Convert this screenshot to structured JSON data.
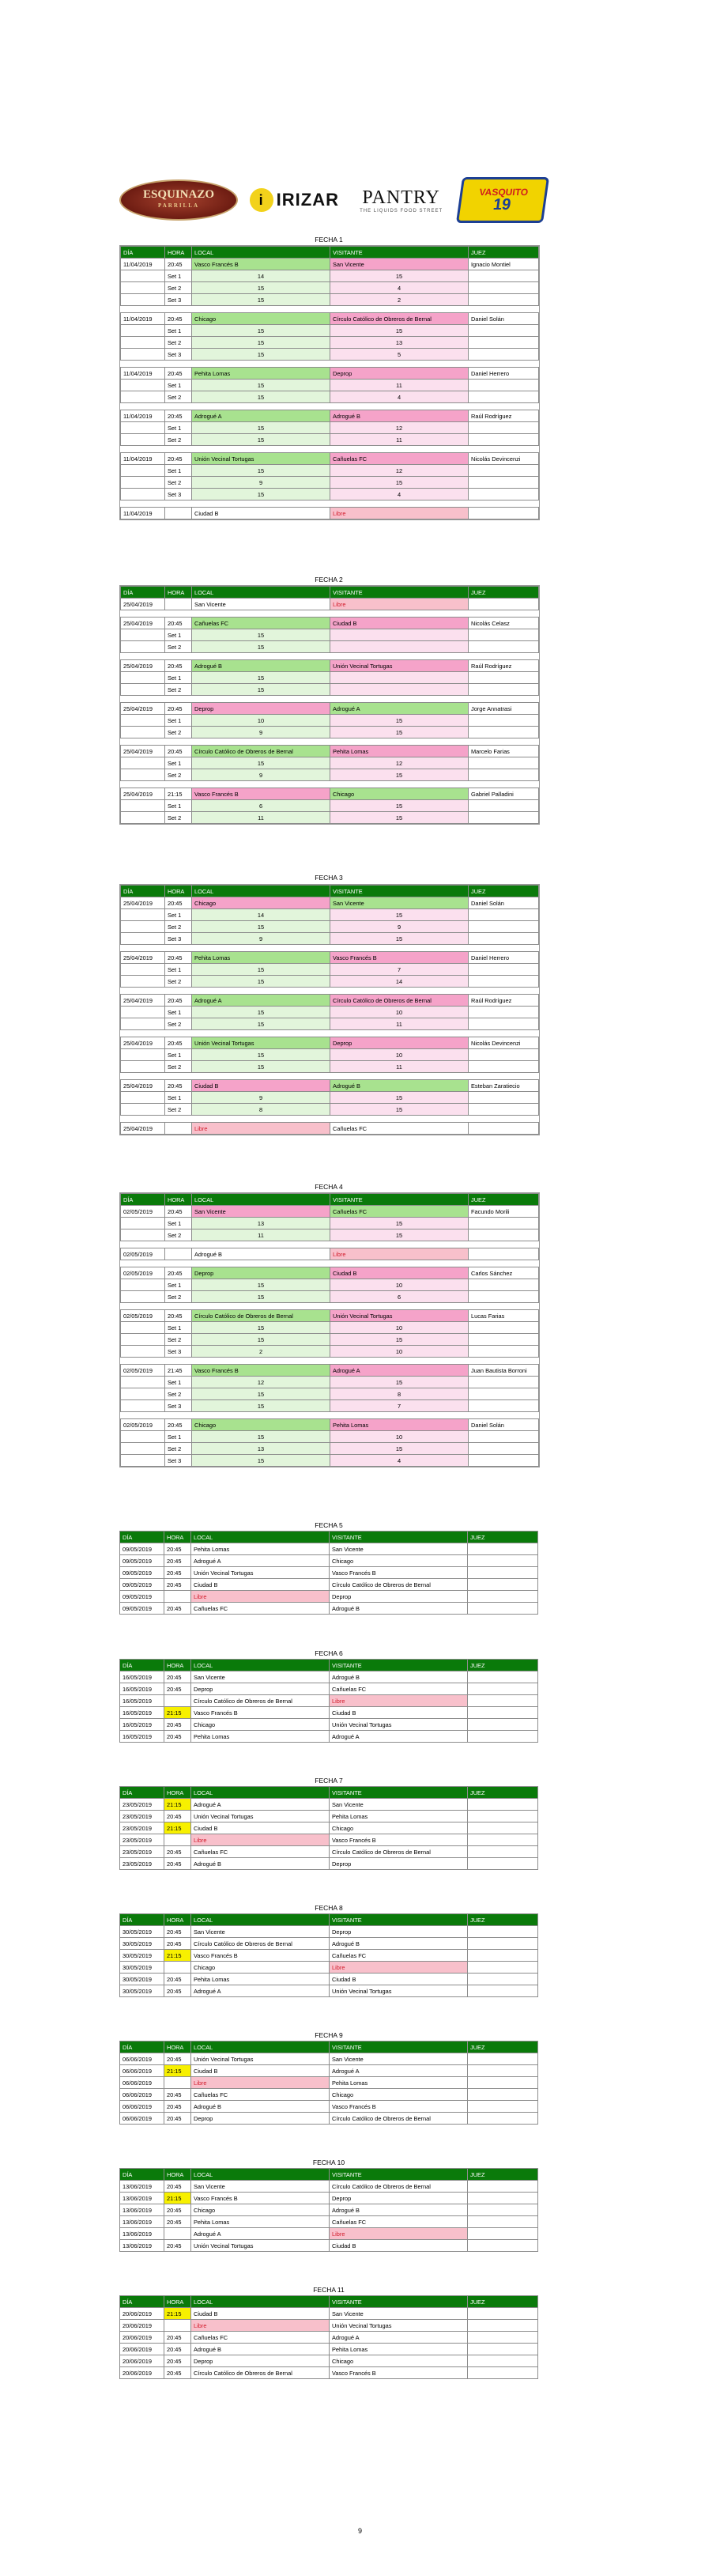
{
  "sponsors": {
    "esquinazo": {
      "main": "ESQUINAZO",
      "sub": "PARRILLA"
    },
    "irizar": {
      "main": "IRIZAR",
      "mark": "i"
    },
    "pantry": {
      "main": "PANTRY",
      "sub": "THE LIQUIDS FOOD STREET"
    },
    "vasquito": {
      "main": "VASQUITO",
      "num": "19"
    }
  },
  "header": {
    "dia": "DÍA",
    "hora": "HORA",
    "local": "LOCAL",
    "visitante": "VISITANTE",
    "juez": "JUEZ"
  },
  "fechas": [
    {
      "title": "FECHA 1",
      "matches": [
        {
          "dia": "11/04/2019",
          "hora": "20:45",
          "local": "Vasco Francés B",
          "visitante": "San Vicente",
          "juez": "Ignacio Montiel",
          "sets": [
            [
              "Set 1",
              "14",
              "15"
            ],
            [
              "Set 2",
              "15",
              "4"
            ],
            [
              "Set 3",
              "15",
              "2"
            ]
          ]
        },
        {
          "dia": "11/04/2019",
          "hora": "20:45",
          "local": "Chicago",
          "visitante": "Círculo Católico de Obreros de Bernal",
          "juez": "Daniel Solán",
          "sets": [
            [
              "Set 1",
              "15",
              "15"
            ],
            [
              "Set 2",
              "15",
              "13"
            ],
            [
              "Set 3",
              "15",
              "5"
            ]
          ]
        },
        {
          "dia": "11/04/2019",
          "hora": "20:45",
          "local": "Pehita Lomas",
          "visitante": "Deprop",
          "juez": "Daniel Herrero",
          "sets": [
            [
              "Set 1",
              "15",
              "11"
            ],
            [
              "Set 2",
              "15",
              "4"
            ]
          ]
        },
        {
          "dia": "11/04/2019",
          "hora": "20:45",
          "local": "Adrogué A",
          "visitante": "Adrogué B",
          "juez": "Raúl Rodríguez",
          "sets": [
            [
              "Set 1",
              "15",
              "12"
            ],
            [
              "Set 2",
              "15",
              "11"
            ]
          ]
        },
        {
          "dia": "11/04/2019",
          "hora": "20:45",
          "local": "Unión Vecinal Tortugas",
          "visitante": "Cañuelas FC",
          "juez": "Nicolás Devincenzi",
          "sets": [
            [
              "Set 1",
              "15",
              "12"
            ],
            [
              "Set 2",
              "9",
              "15"
            ],
            [
              "Set 3",
              "15",
              "4"
            ]
          ]
        },
        {
          "dia": "11/04/2019",
          "hora": "",
          "local": "Ciudad B",
          "visitante": "Libre",
          "juez": "",
          "libre": "v",
          "sets": []
        }
      ]
    },
    {
      "title": "FECHA 2",
      "matches": [
        {
          "dia": "25/04/2019",
          "hora": "",
          "local": "San Vicente",
          "visitante": "Libre",
          "juez": "",
          "libre": "v",
          "sets": []
        },
        {
          "dia": "25/04/2019",
          "hora": "20:45",
          "local": "Cañuelas FC",
          "visitante": "Ciudad B",
          "juez": "Nicolás Celasz",
          "sets": [
            [
              "Set 1",
              "15",
              ""
            ],
            [
              "Set 2",
              "15",
              ""
            ]
          ]
        },
        {
          "dia": "25/04/2019",
          "hora": "20:45",
          "local": "Adrogué B",
          "visitante": "Unión Vecinal Tortugas",
          "juez": "Raúl Rodríguez",
          "sets": [
            [
              "Set 1",
              "15",
              ""
            ],
            [
              "Set 2",
              "15",
              ""
            ]
          ]
        },
        {
          "dia": "25/04/2019",
          "hora": "20:45",
          "local": "Deprop",
          "visitante": "Adrogué A",
          "juez": "Jorge Annatrasi",
          "sets": [
            [
              "Set 1",
              "10",
              "15"
            ],
            [
              "Set 2",
              "9",
              "15"
            ]
          ]
        },
        {
          "dia": "25/04/2019",
          "hora": "20:45",
          "local": "Círculo Católico de Obreros de Bernal",
          "visitante": "Pehita Lomas",
          "juez": "Marcelo Farias",
          "sets": [
            [
              "Set 1",
              "15",
              "12"
            ],
            [
              "Set 2",
              "9",
              "15"
            ]
          ]
        },
        {
          "dia": "25/04/2019",
          "hora": "21:15",
          "local": "Vasco Francés B",
          "visitante": "Chicago",
          "juez": "Gabriel Palladini",
          "sets": [
            [
              "Set 1",
              "6",
              "15"
            ],
            [
              "Set 2",
              "11",
              "15"
            ]
          ]
        }
      ]
    },
    {
      "title": "FECHA 3",
      "matches": [
        {
          "dia": "25/04/2019",
          "hora": "20:45",
          "local": "Chicago",
          "visitante": "San Vicente",
          "juez": "Daniel Solán",
          "sets": [
            [
              "Set 1",
              "14",
              "15"
            ],
            [
              "Set 2",
              "15",
              "9"
            ],
            [
              "Set 3",
              "9",
              "15"
            ]
          ]
        },
        {
          "dia": "25/04/2019",
          "hora": "20:45",
          "local": "Pehita Lomas",
          "visitante": "Vasco Francés B",
          "juez": "Daniel Herrero",
          "sets": [
            [
              "Set 1",
              "15",
              "7"
            ],
            [
              "Set 2",
              "15",
              "14"
            ]
          ]
        },
        {
          "dia": "25/04/2019",
          "hora": "20:45",
          "local": "Adrogué A",
          "visitante": "Círculo Católico de Obreros de Bernal",
          "juez": "Raúl Rodríguez",
          "sets": [
            [
              "Set 1",
              "15",
              "10"
            ],
            [
              "Set 2",
              "15",
              "11"
            ]
          ]
        },
        {
          "dia": "25/04/2019",
          "hora": "20:45",
          "local": "Unión Vecinal Tortugas",
          "visitante": "Deprop",
          "juez": "Nicolás Devincenzi",
          "sets": [
            [
              "Set 1",
              "15",
              "10"
            ],
            [
              "Set 2",
              "15",
              "11"
            ]
          ]
        },
        {
          "dia": "25/04/2019",
          "hora": "20:45",
          "local": "Ciudad B",
          "visitante": "Adrogué B",
          "juez": "Esteban Zaratiecio",
          "sets": [
            [
              "Set 1",
              "9",
              "15"
            ],
            [
              "Set 2",
              "8",
              "15"
            ]
          ]
        },
        {
          "dia": "25/04/2019",
          "hora": "",
          "local": "Libre",
          "visitante": "Cañuelas FC",
          "juez": "",
          "libre": "l",
          "sets": []
        }
      ]
    },
    {
      "title": "FECHA 4",
      "matches": [
        {
          "dia": "02/05/2019",
          "hora": "20:45",
          "local": "San Vicente",
          "visitante": "Cañuelas FC",
          "juez": "Facundo Morili",
          "sets": [
            [
              "Set 1",
              "13",
              "15"
            ],
            [
              "Set 2",
              "11",
              "15"
            ]
          ]
        },
        {
          "dia": "02/05/2019",
          "hora": "",
          "local": "Adrogué B",
          "visitante": "Libre",
          "juez": "",
          "libre": "v",
          "sets": []
        },
        {
          "dia": "02/05/2019",
          "hora": "20:45",
          "local": "Deprop",
          "visitante": "Ciudad B",
          "juez": "Carlos Sánchez",
          "sets": [
            [
              "Set 1",
              "15",
              "10"
            ],
            [
              "Set 2",
              "15",
              "6"
            ]
          ]
        },
        {
          "dia": "02/05/2019",
          "hora": "20:45",
          "local": "Círculo Católico de Obreros de Bernal",
          "visitante": "Unión Vecinal Tortugas",
          "juez": "Lucas Farias",
          "sets": [
            [
              "Set 1",
              "15",
              "10"
            ],
            [
              "Set 2",
              "15",
              "15"
            ],
            [
              "Set 3",
              "2",
              "10"
            ]
          ]
        },
        {
          "dia": "02/05/2019",
          "hora": "21:45",
          "local": "Vasco Francés B",
          "visitante": "Adrogué A",
          "juez": "Juan Bautista Borroni",
          "sets": [
            [
              "Set 1",
              "12",
              "15"
            ],
            [
              "Set 2",
              "15",
              "8"
            ],
            [
              "Set 3",
              "15",
              "7"
            ]
          ]
        },
        {
          "dia": "02/05/2019",
          "hora": "20:45",
          "local": "Chicago",
          "visitante": "Pehita Lomas",
          "juez": "Daniel Solán",
          "sets": [
            [
              "Set 1",
              "15",
              "10"
            ],
            [
              "Set 2",
              "13",
              "15"
            ],
            [
              "Set 3",
              "15",
              "4"
            ]
          ]
        }
      ]
    },
    {
      "title": "FECHA 5",
      "rows": [
        {
          "dia": "09/05/2019",
          "hora": "20:45",
          "local": "Pehita Lomas",
          "visitante": "San Vicente",
          "juez": ""
        },
        {
          "dia": "09/05/2019",
          "hora": "20:45",
          "local": "Adrogué A",
          "visitante": "Chicago",
          "juez": ""
        },
        {
          "dia": "09/05/2019",
          "hora": "20:45",
          "local": "Unión Vecinal Tortugas",
          "visitante": "Vasco Francés B",
          "juez": ""
        },
        {
          "dia": "09/05/2019",
          "hora": "20:45",
          "local": "Ciudad B",
          "visitante": "Círculo Católico de Obreros de Bernal",
          "juez": ""
        },
        {
          "dia": "09/05/2019",
          "hora": "",
          "local": "Libre",
          "visitante": "Deprop",
          "juez": "",
          "libre": "l"
        },
        {
          "dia": "09/05/2019",
          "hora": "20:45",
          "local": "Cañuelas FC",
          "visitante": "Adrogué B",
          "juez": ""
        }
      ]
    },
    {
      "title": "FECHA 6",
      "rows": [
        {
          "dia": "16/05/2019",
          "hora": "20:45",
          "local": "San Vicente",
          "visitante": "Adrogué B",
          "juez": ""
        },
        {
          "dia": "16/05/2019",
          "hora": "20:45",
          "local": "Deprop",
          "visitante": "Cañuelas FC",
          "juez": ""
        },
        {
          "dia": "16/05/2019",
          "hora": "",
          "local": "Círculo Católico de Obreros de Bernal",
          "visitante": "Libre",
          "juez": "",
          "libre": "v"
        },
        {
          "dia": "16/05/2019",
          "hora": "21:15",
          "local": "Vasco Francés B",
          "visitante": "Ciudad B",
          "juez": "",
          "yellow": true
        },
        {
          "dia": "16/05/2019",
          "hora": "20:45",
          "local": "Chicago",
          "visitante": "Unión Vecinal Tortugas",
          "juez": ""
        },
        {
          "dia": "16/05/2019",
          "hora": "20:45",
          "local": "Pehita Lomas",
          "visitante": "Adrogué A",
          "juez": ""
        }
      ]
    },
    {
      "title": "FECHA 7",
      "rows": [
        {
          "dia": "23/05/2019",
          "hora": "21:15",
          "local": "Adrogué A",
          "visitante": "San Vicente",
          "juez": "",
          "yellow": true
        },
        {
          "dia": "23/05/2019",
          "hora": "20:45",
          "local": "Unión Vecinal Tortugas",
          "visitante": "Pehita Lomas",
          "juez": ""
        },
        {
          "dia": "23/05/2019",
          "hora": "21:15",
          "local": "Ciudad B",
          "visitante": "Chicago",
          "juez": "",
          "yellow": true
        },
        {
          "dia": "23/05/2019",
          "hora": "",
          "local": "Libre",
          "visitante": "Vasco Francés B",
          "juez": "",
          "libre": "l"
        },
        {
          "dia": "23/05/2019",
          "hora": "20:45",
          "local": "Cañuelas FC",
          "visitante": "Círculo Católico de Obreros de Bernal",
          "juez": ""
        },
        {
          "dia": "23/05/2019",
          "hora": "20:45",
          "local": "Adrogué B",
          "visitante": "Deprop",
          "juez": ""
        }
      ]
    },
    {
      "title": "FECHA 8",
      "rows": [
        {
          "dia": "30/05/2019",
          "hora": "20:45",
          "local": "San Vicente",
          "visitante": "Deprop",
          "juez": ""
        },
        {
          "dia": "30/05/2019",
          "hora": "20:45",
          "local": "Círculo Católico de Obreros de Bernal",
          "visitante": "Adrogué B",
          "juez": ""
        },
        {
          "dia": "30/05/2019",
          "hora": "21:15",
          "local": "Vasco Francés B",
          "visitante": "Cañuelas FC",
          "juez": "",
          "yellow": true
        },
        {
          "dia": "30/05/2019",
          "hora": "",
          "local": "Chicago",
          "visitante": "Libre",
          "juez": "",
          "libre": "v"
        },
        {
          "dia": "30/05/2019",
          "hora": "20:45",
          "local": "Pehita Lomas",
          "visitante": "Ciudad B",
          "juez": ""
        },
        {
          "dia": "30/05/2019",
          "hora": "20:45",
          "local": "Adrogué A",
          "visitante": "Unión Vecinal Tortugas",
          "juez": ""
        }
      ]
    },
    {
      "title": "FECHA 9",
      "rows": [
        {
          "dia": "06/06/2019",
          "hora": "20:45",
          "local": "Unión Vecinal Tortugas",
          "visitante": "San Vicente",
          "juez": ""
        },
        {
          "dia": "06/06/2019",
          "hora": "21:15",
          "local": "Ciudad B",
          "visitante": "Adrogué A",
          "juez": "",
          "yellow": true
        },
        {
          "dia": "06/06/2019",
          "hora": "",
          "local": "Libre",
          "visitante": "Pehita Lomas",
          "juez": "",
          "libre": "l"
        },
        {
          "dia": "06/06/2019",
          "hora": "20:45",
          "local": "Cañuelas FC",
          "visitante": "Chicago",
          "juez": ""
        },
        {
          "dia": "06/06/2019",
          "hora": "20:45",
          "local": "Adrogué B",
          "visitante": "Vasco Francés B",
          "juez": ""
        },
        {
          "dia": "06/06/2019",
          "hora": "20:45",
          "local": "Deprop",
          "visitante": "Círculo Católico de Obreros de Bernal",
          "juez": ""
        }
      ]
    },
    {
      "title": "FECHA 10",
      "rows": [
        {
          "dia": "13/06/2019",
          "hora": "20:45",
          "local": "San Vicente",
          "visitante": "Círculo Católico de Obreros de Bernal",
          "juez": ""
        },
        {
          "dia": "13/06/2019",
          "hora": "21:15",
          "local": "Vasco Francés B",
          "visitante": "Deprop",
          "juez": "",
          "yellow": true
        },
        {
          "dia": "13/06/2019",
          "hora": "20:45",
          "local": "Chicago",
          "visitante": "Adrogué B",
          "juez": ""
        },
        {
          "dia": "13/06/2019",
          "hora": "20:45",
          "local": "Pehita Lomas",
          "visitante": "Cañuelas FC",
          "juez": ""
        },
        {
          "dia": "13/06/2019",
          "hora": "",
          "local": "Adrogué A",
          "visitante": "Libre",
          "juez": "",
          "libre": "v"
        },
        {
          "dia": "13/06/2019",
          "hora": "20:45",
          "local": "Unión Vecinal Tortugas",
          "visitante": "Ciudad B",
          "juez": ""
        }
      ]
    },
    {
      "title": "FECHA 11",
      "rows": [
        {
          "dia": "20/06/2019",
          "hora": "21:15",
          "local": "Ciudad B",
          "visitante": "San Vicente",
          "juez": "",
          "yellow": true
        },
        {
          "dia": "20/06/2019",
          "hora": "",
          "local": "Libre",
          "visitante": "Unión Vecinal Tortugas",
          "juez": "",
          "libre": "l"
        },
        {
          "dia": "20/06/2019",
          "hora": "20:45",
          "local": "Cañuelas FC",
          "visitante": "Adrogué A",
          "juez": ""
        },
        {
          "dia": "20/06/2019",
          "hora": "20:45",
          "local": "Adrogué B",
          "visitante": "Pehita Lomas",
          "juez": ""
        },
        {
          "dia": "20/06/2019",
          "hora": "20:45",
          "local": "Deprop",
          "visitante": "Chicago",
          "juez": ""
        },
        {
          "dia": "20/06/2019",
          "hora": "20:45",
          "local": "Círculo Católico de Obreros de Bernal",
          "visitante": "Vasco Francés B",
          "juez": ""
        }
      ]
    }
  ],
  "page_number": "9",
  "colors": {
    "header": "#0a7a0a",
    "local_win": "#a8e28f",
    "visitor": "#f5a3c9",
    "set_local": "#e2f5db",
    "set_visitor": "#fbe0ee",
    "late": "#f7f000",
    "libre": "#f8c0cb"
  }
}
